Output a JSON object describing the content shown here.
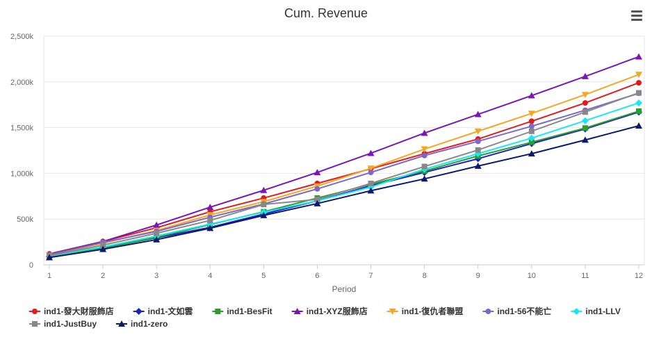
{
  "chart_data": {
    "type": "line",
    "title": "Cum. Revenue",
    "xlabel": "Period",
    "ylabel": "",
    "categories": [
      1,
      2,
      3,
      4,
      5,
      6,
      7,
      8,
      9,
      10,
      11,
      12
    ],
    "ylim": [
      0,
      2500000
    ],
    "yticks": [
      {
        "value": 0,
        "label": "0"
      },
      {
        "value": 500000,
        "label": "500k"
      },
      {
        "value": 1000000,
        "label": "1,000k"
      },
      {
        "value": 1500000,
        "label": "1,500k"
      },
      {
        "value": 2000000,
        "label": "2,000k"
      },
      {
        "value": 2500000,
        "label": "2,500k"
      }
    ],
    "grid": true,
    "legend": "bottom",
    "series": [
      {
        "name": "ind1-發大財服飾店",
        "color": "#e31a1c",
        "marker": "circle",
        "values": [
          120000,
          255000,
          405000,
          580000,
          730000,
          890000,
          1050000,
          1215000,
          1375000,
          1570000,
          1770000,
          1990000
        ]
      },
      {
        "name": "ind1-文如雲",
        "color": "#1f1fc8",
        "marker": "diamond",
        "values": [
          90000,
          185000,
          295000,
          410000,
          555000,
          700000,
          865000,
          1010000,
          1160000,
          1325000,
          1485000,
          1670000
        ]
      },
      {
        "name": "ind1-BesFit",
        "color": "#2a9d2a",
        "marker": "square",
        "values": [
          85000,
          180000,
          300000,
          440000,
          580000,
          730000,
          880000,
          1025000,
          1190000,
          1340000,
          1495000,
          1680000
        ]
      },
      {
        "name": "ind1-XYZ服飾店",
        "color": "#7b16b5",
        "marker": "triangle",
        "values": [
          115000,
          255000,
          435000,
          630000,
          815000,
          1010000,
          1220000,
          1440000,
          1645000,
          1850000,
          2060000,
          2275000
        ]
      },
      {
        "name": "ind1-復仇者聯盟",
        "color": "#f5a623",
        "marker": "triangle-down",
        "values": [
          105000,
          235000,
          375000,
          545000,
          690000,
          860000,
          1055000,
          1265000,
          1460000,
          1655000,
          1860000,
          2080000
        ]
      },
      {
        "name": "ind1-56不能亡",
        "color": "#7b68c8",
        "marker": "circle",
        "values": [
          110000,
          245000,
          365000,
          520000,
          665000,
          830000,
          1010000,
          1195000,
          1350000,
          1515000,
          1690000,
          1875000
        ]
      },
      {
        "name": "ind1-LLV",
        "color": "#17e8f0",
        "marker": "diamond",
        "values": [
          95000,
          195000,
          315000,
          445000,
          575000,
          700000,
          850000,
          1045000,
          1215000,
          1385000,
          1575000,
          1770000
        ]
      },
      {
        "name": "ind1-JustBuy",
        "color": "#888888",
        "marker": "square",
        "values": [
          100000,
          215000,
          345000,
          485000,
          660000,
          715000,
          890000,
          1075000,
          1255000,
          1460000,
          1670000,
          1880000
        ]
      },
      {
        "name": "ind1-zero",
        "color": "#0c1a6e",
        "marker": "triangle",
        "values": [
          80000,
          170000,
          275000,
          400000,
          540000,
          670000,
          810000,
          940000,
          1080000,
          1215000,
          1365000,
          1520000
        ]
      }
    ]
  }
}
